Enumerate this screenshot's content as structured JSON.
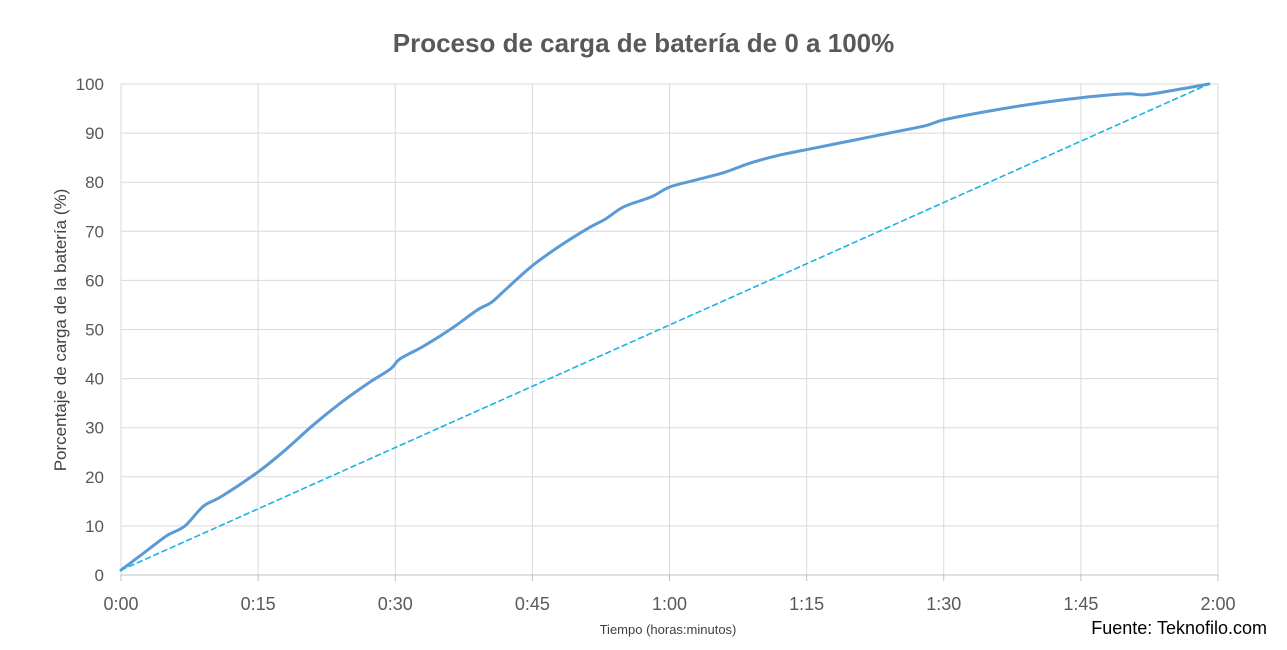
{
  "chart_data": {
    "type": "line",
    "title": "Proceso de carga de batería de 0 a 100%",
    "xlabel": "Tiempo (horas:minutos)",
    "ylabel": "Porcentaje de carga de la batería (%)",
    "x_unit": "minutes",
    "xlim": [
      0,
      120
    ],
    "ylim": [
      0,
      100
    ],
    "x_ticks": [
      0,
      15,
      30,
      45,
      60,
      75,
      90,
      105,
      120
    ],
    "x_tick_labels": [
      "0:00",
      "0:15",
      "0:30",
      "0:45",
      "1:00",
      "1:15",
      "1:30",
      "1:45",
      "2:00"
    ],
    "y_ticks": [
      0,
      10,
      20,
      30,
      40,
      50,
      60,
      70,
      80,
      90,
      100
    ],
    "y_tick_labels": [
      "0",
      "10",
      "20",
      "30",
      "40",
      "50",
      "60",
      "70",
      "80",
      "90",
      "100"
    ],
    "grid": true,
    "series": [
      {
        "style": "solid",
        "color": "#5b9bd5",
        "points": [
          [
            0,
            1
          ],
          [
            2.5,
            4.5
          ],
          [
            5,
            8
          ],
          [
            7,
            10
          ],
          [
            9,
            14
          ],
          [
            11,
            16
          ],
          [
            15,
            21
          ],
          [
            18,
            25.5
          ],
          [
            21,
            30.5
          ],
          [
            24,
            35
          ],
          [
            27,
            39
          ],
          [
            29.5,
            42
          ],
          [
            30.5,
            44
          ],
          [
            33,
            46.5
          ],
          [
            36,
            50
          ],
          [
            39,
            54
          ],
          [
            40.5,
            55.5
          ],
          [
            42,
            58
          ],
          [
            45,
            63
          ],
          [
            48,
            67
          ],
          [
            51,
            70.5
          ],
          [
            53,
            72.5
          ],
          [
            55,
            75
          ],
          [
            58,
            77
          ],
          [
            60,
            79
          ],
          [
            63,
            80.5
          ],
          [
            66,
            82
          ],
          [
            69,
            84
          ],
          [
            72,
            85.5
          ],
          [
            76,
            87
          ],
          [
            80,
            88.5
          ],
          [
            84,
            90
          ],
          [
            88,
            91.5
          ],
          [
            90,
            92.7
          ],
          [
            95,
            94.5
          ],
          [
            100,
            96
          ],
          [
            105,
            97.2
          ],
          [
            110,
            98
          ],
          [
            112,
            97.8
          ],
          [
            116,
            99
          ],
          [
            119,
            100
          ]
        ]
      },
      {
        "style": "dashed",
        "color": "#1ab3e6",
        "points": [
          [
            0,
            1
          ],
          [
            119,
            100
          ]
        ]
      }
    ]
  },
  "source": "Fuente: Teknofilo.com"
}
